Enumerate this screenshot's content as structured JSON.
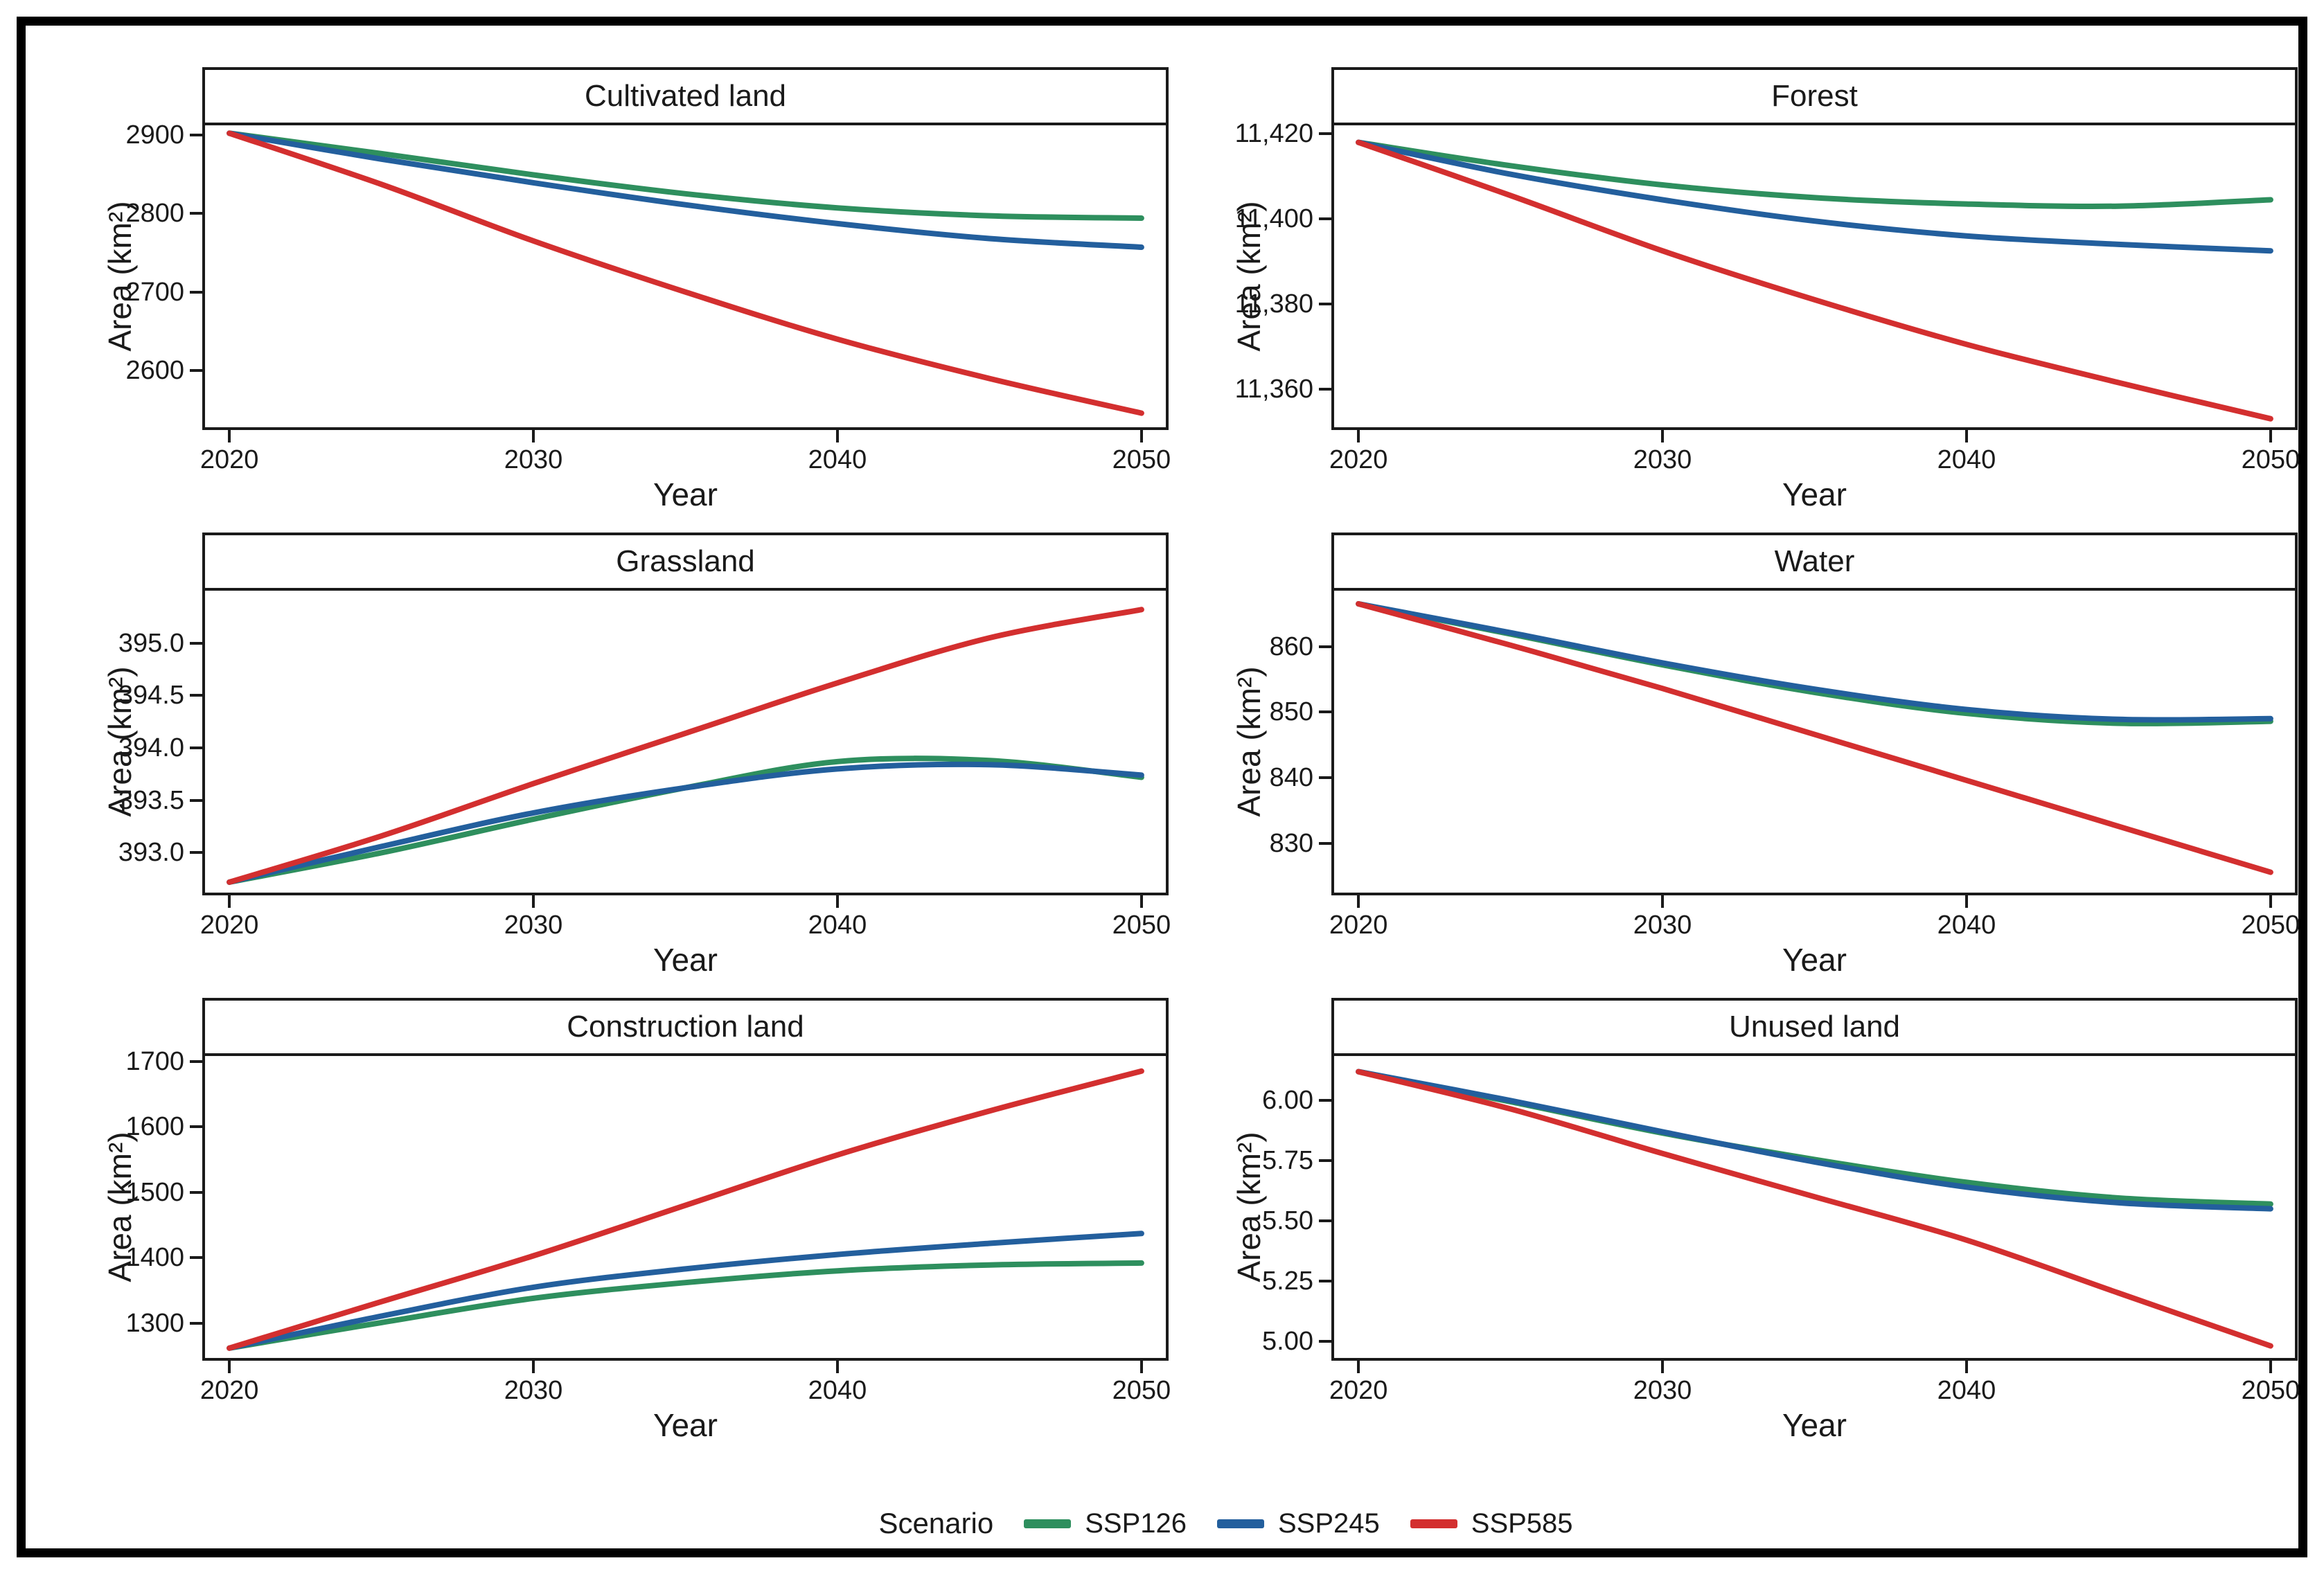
{
  "figure": {
    "xlabel": "Year",
    "ylabel": "Area (km²)",
    "axis_color": "#1a1a1a",
    "legend": {
      "title": "Scenario",
      "entries": [
        {
          "label": "SSP126",
          "color": "#2e8f5e"
        },
        {
          "label": "SSP245",
          "color": "#235f9d"
        },
        {
          "label": "SSP585",
          "color": "#d32f2f"
        }
      ]
    }
  },
  "chart_data": [
    {
      "type": "line",
      "title": "Cultivated land",
      "xlabel": "Year",
      "ylabel": "Area (km²)",
      "x": [
        2020,
        2025,
        2030,
        2035,
        2040,
        2045,
        2050
      ],
      "series": [
        {
          "name": "SSP126",
          "color": "#2e8f5e",
          "values": [
            2902,
            2876,
            2849,
            2825,
            2807,
            2797,
            2794
          ]
        },
        {
          "name": "SSP245",
          "color": "#235f9d",
          "values": [
            2902,
            2869,
            2839,
            2811,
            2787,
            2768,
            2757
          ]
        },
        {
          "name": "SSP585",
          "color": "#d32f2f",
          "values": [
            2902,
            2837,
            2765,
            2700,
            2640,
            2590,
            2546
          ]
        }
      ],
      "xlim": [
        2019.2,
        2050.8
      ],
      "xticks": [
        2020,
        2030,
        2040,
        2050
      ],
      "xtick_labels": [
        "2020",
        "2030",
        "2040",
        "2050"
      ],
      "ylim": [
        2528,
        2912
      ],
      "yticks": [
        2600,
        2700,
        2800,
        2900
      ],
      "ytick_labels": [
        "2600",
        "2700",
        "2800",
        "2900"
      ],
      "grid": false
    },
    {
      "type": "line",
      "title": "Forest",
      "xlabel": "Year",
      "ylabel": "Area (km²)",
      "x": [
        2020,
        2025,
        2030,
        2035,
        2040,
        2045,
        2050
      ],
      "series": [
        {
          "name": "SSP126",
          "color": "#2e8f5e",
          "values": [
            11418,
            11412.5,
            11408,
            11405,
            11403.5,
            11403,
            11404.5
          ]
        },
        {
          "name": "SSP245",
          "color": "#235f9d",
          "values": [
            11418,
            11410.5,
            11404.5,
            11399.5,
            11396,
            11394,
            11392.5
          ]
        },
        {
          "name": "SSP585",
          "color": "#d32f2f",
          "values": [
            11418,
            11405.5,
            11392.5,
            11381,
            11370.5,
            11361.5,
            11353
          ]
        }
      ],
      "xlim": [
        2019.2,
        2050.8
      ],
      "xticks": [
        2020,
        2030,
        2040,
        2050
      ],
      "xtick_labels": [
        "2020",
        "2030",
        "2040",
        "2050"
      ],
      "ylim": [
        11351,
        11422
      ],
      "yticks": [
        11360,
        11380,
        11400,
        11420
      ],
      "ytick_labels": [
        "11,360",
        "11,380",
        "11,400",
        "11,420"
      ],
      "grid": false
    },
    {
      "type": "line",
      "title": "Grassland",
      "xlabel": "Year",
      "ylabel": "Area (km²)",
      "x": [
        2020,
        2025,
        2030,
        2035,
        2040,
        2045,
        2050
      ],
      "series": [
        {
          "name": "SSP126",
          "color": "#2e8f5e",
          "values": [
            392.72,
            393.0,
            393.32,
            393.62,
            393.87,
            393.88,
            393.72
          ]
        },
        {
          "name": "SSP245",
          "color": "#235f9d",
          "values": [
            392.72,
            393.06,
            393.38,
            393.62,
            393.8,
            393.84,
            393.74
          ]
        },
        {
          "name": "SSP585",
          "color": "#d32f2f",
          "values": [
            392.72,
            393.16,
            393.66,
            394.14,
            394.62,
            395.05,
            395.32
          ]
        }
      ],
      "xlim": [
        2019.2,
        2050.8
      ],
      "xticks": [
        2020,
        2030,
        2040,
        2050
      ],
      "xtick_labels": [
        "2020",
        "2030",
        "2040",
        "2050"
      ],
      "ylim": [
        392.62,
        395.5
      ],
      "yticks": [
        393.0,
        393.5,
        394.0,
        394.5,
        395.0
      ],
      "ytick_labels": [
        "393.0",
        "393.5",
        "394.0",
        "394.5",
        "395.0"
      ],
      "grid": false
    },
    {
      "type": "line",
      "title": "Water",
      "xlabel": "Year",
      "ylabel": "Area (km²)",
      "x": [
        2020,
        2025,
        2030,
        2035,
        2040,
        2045,
        2050
      ],
      "series": [
        {
          "name": "SSP126",
          "color": "#2e8f5e",
          "values": [
            866.5,
            861.9,
            857.2,
            853.0,
            849.8,
            848.3,
            848.6
          ]
        },
        {
          "name": "SSP245",
          "color": "#235f9d",
          "values": [
            866.5,
            862.1,
            857.5,
            853.5,
            850.4,
            848.9,
            849.0
          ]
        },
        {
          "name": "SSP585",
          "color": "#d32f2f",
          "values": [
            866.5,
            860.2,
            853.6,
            846.6,
            839.6,
            832.6,
            825.6
          ]
        }
      ],
      "xlim": [
        2019.2,
        2050.8
      ],
      "xticks": [
        2020,
        2030,
        2040,
        2050
      ],
      "xtick_labels": [
        "2020",
        "2030",
        "2040",
        "2050"
      ],
      "ylim": [
        822.5,
        868.5
      ],
      "yticks": [
        830,
        840,
        850,
        860
      ],
      "ytick_labels": [
        "830",
        "840",
        "850",
        "860"
      ],
      "grid": false
    },
    {
      "type": "line",
      "title": "Construction land",
      "xlabel": "Year",
      "ylabel": "Area (km²)",
      "x": [
        2020,
        2025,
        2030,
        2035,
        2040,
        2045,
        2050
      ],
      "series": [
        {
          "name": "SSP126",
          "color": "#2e8f5e",
          "values": [
            1262,
            1301,
            1338,
            1362,
            1380,
            1389,
            1392
          ]
        },
        {
          "name": "SSP245",
          "color": "#235f9d",
          "values": [
            1262,
            1311,
            1355,
            1383,
            1405,
            1422,
            1437
          ]
        },
        {
          "name": "SSP585",
          "color": "#d32f2f",
          "values": [
            1262,
            1333,
            1403,
            1480,
            1557,
            1624,
            1685
          ]
        }
      ],
      "xlim": [
        2019.2,
        2050.8
      ],
      "xticks": [
        2020,
        2030,
        2040,
        2050
      ],
      "xtick_labels": [
        "2020",
        "2030",
        "2040",
        "2050"
      ],
      "ylim": [
        1247,
        1708
      ],
      "yticks": [
        1300,
        1400,
        1500,
        1600,
        1700
      ],
      "ytick_labels": [
        "1300",
        "1400",
        "1500",
        "1600",
        "1700"
      ],
      "grid": false
    },
    {
      "type": "line",
      "title": "Unused land",
      "xlabel": "Year",
      "ylabel": "Area (km²)",
      "x": [
        2020,
        2025,
        2030,
        2035,
        2040,
        2045,
        2050
      ],
      "series": [
        {
          "name": "SSP126",
          "color": "#2e8f5e",
          "values": [
            6.12,
            5.995,
            5.865,
            5.755,
            5.66,
            5.595,
            5.57
          ]
        },
        {
          "name": "SSP245",
          "color": "#235f9d",
          "values": [
            6.12,
            6.0,
            5.87,
            5.745,
            5.64,
            5.575,
            5.55
          ]
        },
        {
          "name": "SSP585",
          "color": "#d32f2f",
          "values": [
            6.12,
            5.965,
            5.78,
            5.6,
            5.42,
            5.2,
            4.98
          ]
        }
      ],
      "xlim": [
        2019.2,
        2050.8
      ],
      "xticks": [
        2020,
        2030,
        2040,
        2050
      ],
      "xtick_labels": [
        "2020",
        "2030",
        "2040",
        "2050"
      ],
      "ylim": [
        4.93,
        6.185
      ],
      "yticks": [
        5.0,
        5.25,
        5.5,
        5.75,
        6.0
      ],
      "ytick_labels": [
        "5.00",
        "5.25",
        "5.50",
        "5.75",
        "6.00"
      ],
      "grid": false
    }
  ]
}
